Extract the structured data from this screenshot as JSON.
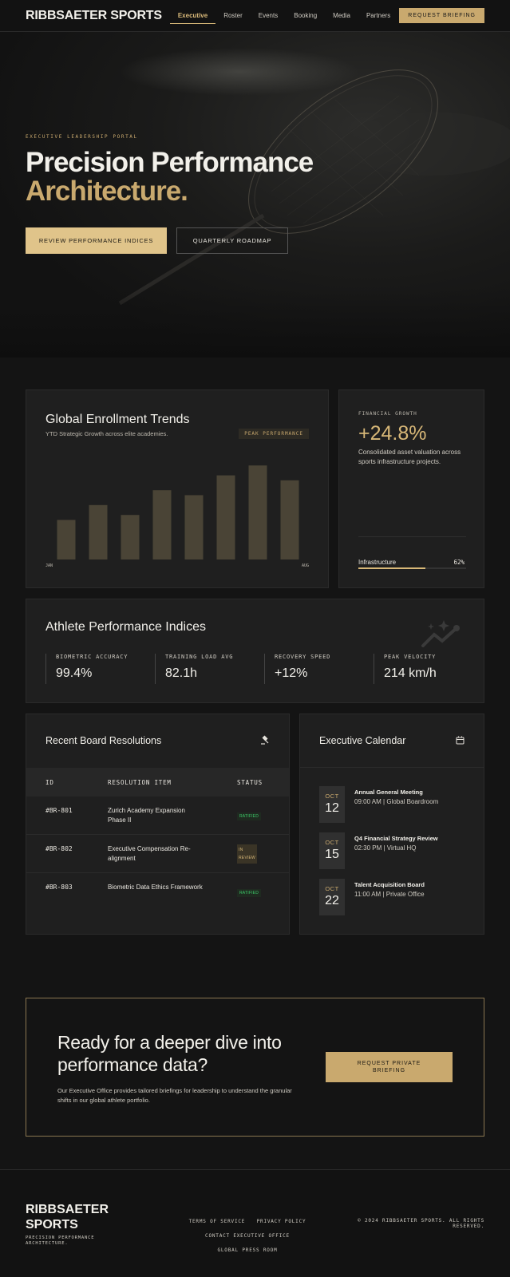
{
  "nav": {
    "brand": "RIBBSAETER SPORTS",
    "links": [
      "Executive",
      "Roster",
      "Events",
      "Booking",
      "Media",
      "Partners"
    ],
    "cta": "REQUEST BRIEFING"
  },
  "hero": {
    "eyebrow": "EXECUTIVE LEADERSHIP PORTAL",
    "title_line1": "Precision Performance",
    "title_line2": "Architecture.",
    "primary_button": "REVIEW PERFORMANCE INDICES",
    "secondary_button": "QUARTERLY ROADMAP"
  },
  "enrollment": {
    "title": "Global Enrollment Trends",
    "subtitle": "YTD Strategic Growth across elite academies.",
    "badge": "PEAK PERFORMANCE",
    "axis_start": "JAN",
    "axis_end": "AUG"
  },
  "chart_data": {
    "type": "bar",
    "title": "Global Enrollment Trends",
    "values": [
      40,
      55,
      45,
      70,
      65,
      85,
      95,
      80
    ],
    "ylim": [
      0,
      100
    ],
    "bar_color": "#4a4436"
  },
  "financial": {
    "label": "FINANCIAL GROWTH",
    "value": "+24.8%",
    "description": "Consolidated asset valuation across sports infrastructure projects.",
    "progress_label": "Infrastructure",
    "progress_value": "62%",
    "progress_fraction": 0.62
  },
  "indices": {
    "title": "Athlete Performance Indices",
    "metrics": [
      {
        "label": "BIOMETRIC ACCURACY",
        "value": "99.4%"
      },
      {
        "label": "TRAINING LOAD AVG",
        "value": "82.1h"
      },
      {
        "label": "RECOVERY SPEED",
        "value": "+12%"
      },
      {
        "label": "PEAK VELOCITY",
        "value": "214 km/h"
      }
    ]
  },
  "resolutions": {
    "title": "Recent Board Resolutions",
    "columns": [
      "ID",
      "RESOLUTION ITEM",
      "STATUS"
    ],
    "rows": [
      {
        "id": "#BR-801",
        "item": "Zurich Academy Expansion Phase II",
        "status": "RATIFIED"
      },
      {
        "id": "#BR-802",
        "item": "Executive Compensation Re-alignment",
        "status": "IN REVIEW"
      },
      {
        "id": "#BR-803",
        "item": "Biometric Data Ethics Framework",
        "status": "RATIFIED"
      }
    ]
  },
  "calendar": {
    "title": "Executive Calendar",
    "events": [
      {
        "month": "OCT",
        "day": "12",
        "title": "Annual General Meeting",
        "detail": "09:00 AM | Global Boardroom"
      },
      {
        "month": "OCT",
        "day": "15",
        "title": "Q4 Financial Strategy Review",
        "detail": "02:30 PM | Virtual HQ"
      },
      {
        "month": "OCT",
        "day": "22",
        "title": "Talent Acquisition Board",
        "detail": "11:00 AM | Private Office"
      }
    ]
  },
  "cta": {
    "heading": "Ready for a deeper dive into performance data?",
    "body": "Our Executive Office provides tailored briefings for leadership to understand the granular shifts in our global athlete portfolio.",
    "button": "REQUEST PRIVATE BRIEFING"
  },
  "footer": {
    "brand": "RIBBSAETER SPORTS",
    "tagline": "PRECISION PERFORMANCE ARCHITECTURE.",
    "links": [
      "TERMS OF SERVICE",
      "PRIVACY POLICY",
      "CONTACT EXECUTIVE OFFICE",
      "GLOBAL PRESS ROOM"
    ],
    "copyright": "© 2024 RIBBSAETER SPORTS. ALL RIGHTS RESERVED."
  }
}
